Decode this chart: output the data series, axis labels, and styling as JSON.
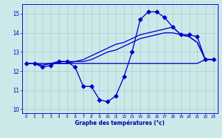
{
  "title": "Graphe des températures (°c)",
  "hours": [
    0,
    1,
    2,
    3,
    4,
    5,
    6,
    7,
    8,
    9,
    10,
    11,
    12,
    13,
    14,
    15,
    16,
    17,
    18,
    19,
    20,
    21,
    22,
    23
  ],
  "temp_main": [
    12.4,
    12.4,
    12.2,
    12.3,
    12.5,
    12.5,
    12.2,
    11.2,
    11.2,
    10.5,
    10.4,
    10.7,
    11.7,
    13.0,
    14.7,
    15.1,
    15.1,
    14.8,
    14.3,
    13.9,
    13.9,
    13.8,
    12.6,
    12.6
  ],
  "temp_flat": [
    12.4,
    12.4,
    12.4,
    12.4,
    12.4,
    12.4,
    12.4,
    12.4,
    12.4,
    12.4,
    12.4,
    12.4,
    12.4,
    12.4,
    12.4,
    12.4,
    12.4,
    12.4,
    12.4,
    12.4,
    12.4,
    12.4,
    12.6,
    12.6
  ],
  "temp_slope1": [
    12.4,
    12.4,
    12.3,
    12.4,
    12.4,
    12.4,
    12.5,
    12.5,
    12.6,
    12.8,
    13.0,
    13.1,
    13.3,
    13.5,
    13.7,
    13.8,
    13.9,
    14.0,
    14.0,
    13.9,
    13.8,
    13.5,
    12.6,
    12.6
  ],
  "temp_slope2": [
    12.4,
    12.4,
    12.3,
    12.4,
    12.5,
    12.5,
    12.5,
    12.6,
    12.8,
    13.0,
    13.2,
    13.4,
    13.5,
    13.7,
    13.9,
    14.0,
    14.1,
    14.2,
    14.3,
    13.9,
    13.8,
    13.5,
    12.6,
    12.6
  ],
  "ylim_min": 9.8,
  "ylim_max": 15.5,
  "yticks": [
    10,
    11,
    12,
    13,
    14,
    15
  ],
  "line_color": "#0000cc",
  "bg_color": "#cce8e8",
  "grid_color": "#aacccc",
  "xlabel_color": "#0000aa"
}
